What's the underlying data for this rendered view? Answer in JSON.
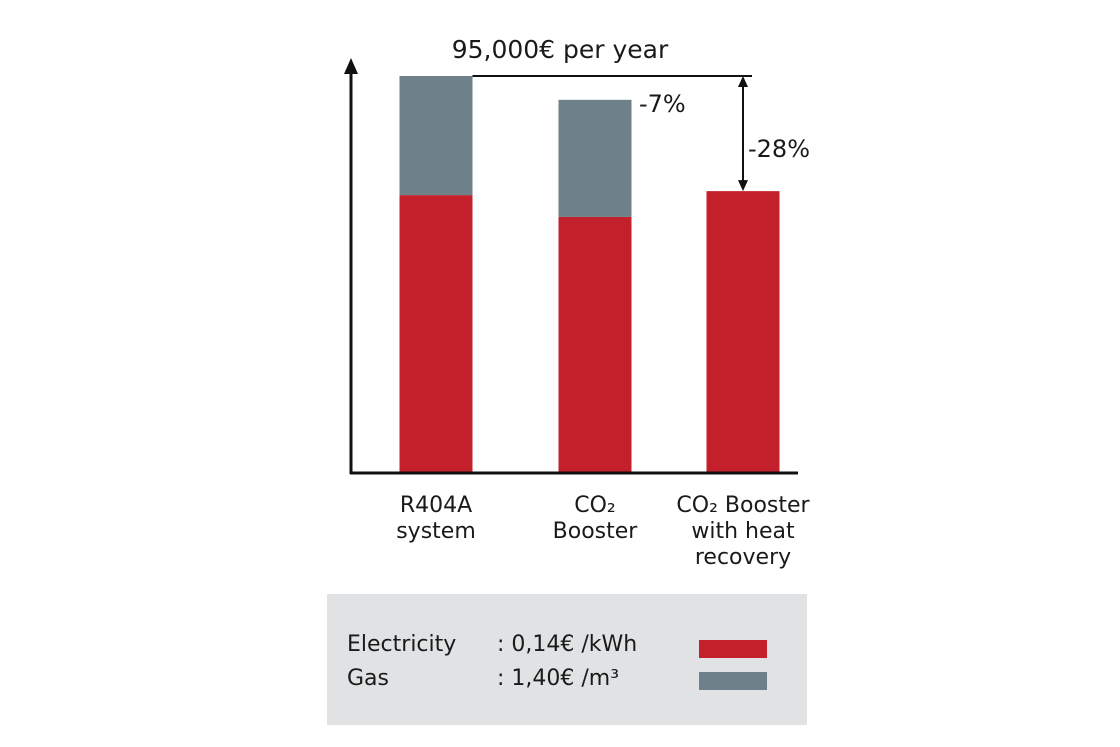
{
  "chart_data": {
    "type": "bar",
    "stacked": true,
    "categories": [
      [
        "R404A",
        "system"
      ],
      [
        "CO₂",
        "Booster"
      ],
      [
        "CO₂ Booster",
        "with heat",
        "recovery"
      ]
    ],
    "series": [
      {
        "name": "Electricity",
        "color": "#c3202b",
        "values": [
          70,
          64.5,
          71
        ]
      },
      {
        "name": "Gas",
        "color": "#6e8089",
        "values": [
          30,
          29.5,
          0
        ]
      }
    ],
    "ylim": [
      0,
      100
    ],
    "axes_arrows": true,
    "grid": false,
    "annotations": {
      "top_label": "95,000€ per year",
      "reduction_co2": "-7%",
      "reduction_heat_recovery": "-28%"
    }
  },
  "legend": {
    "rows": [
      {
        "name": "Electricity",
        "price": ": 0,14€ /kWh",
        "color": "#c3202b"
      },
      {
        "name": "Gas",
        "price": ": 1,40€ /m³",
        "color": "#6e8089"
      }
    ]
  }
}
